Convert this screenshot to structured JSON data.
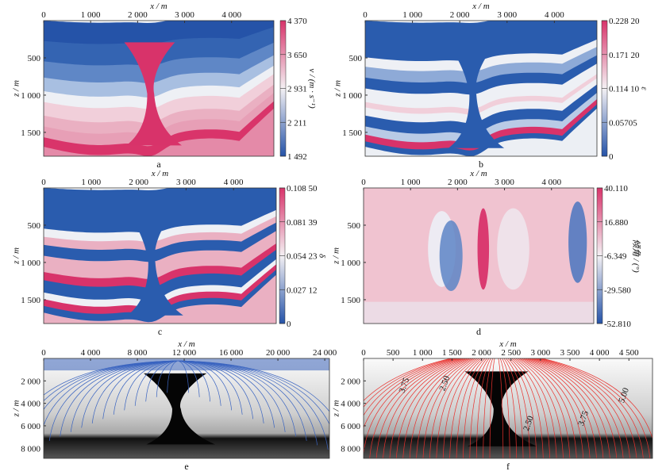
{
  "chart_data": [
    {
      "panel": "a",
      "type": "heatmap",
      "xlabel": "x / m",
      "ylabel": "z / m",
      "xlim": [
        0,
        4900
      ],
      "ylim": [
        1820,
        0
      ],
      "xticks": [
        0,
        1000,
        2000,
        3000,
        4000
      ],
      "xtick_labels": [
        "0",
        "1 000",
        "2 000",
        "3 000",
        "4 000"
      ],
      "yticks": [
        500,
        1000,
        1500
      ],
      "ytick_labels": [
        "500",
        "1 000",
        "1 500"
      ],
      "colorbar": {
        "label": "v / (m · s⁻¹)",
        "ticks": [
          "1 492",
          "2 211",
          "2 931",
          "3 650",
          "4 370"
        ],
        "range": [
          1492,
          4370
        ],
        "colors": [
          "#2553a8",
          "#f4f1f4",
          "#d8336a"
        ]
      }
    },
    {
      "panel": "b",
      "type": "heatmap",
      "xlabel": "x / m",
      "ylabel": "z / m",
      "xlim": [
        0,
        4900
      ],
      "ylim": [
        1820,
        0
      ],
      "xticks": [
        0,
        1000,
        2000,
        3000,
        4000
      ],
      "xtick_labels": [
        "0",
        "1 000",
        "2 000",
        "3 000",
        "4 000"
      ],
      "yticks": [
        500,
        1000,
        1500
      ],
      "ytick_labels": [
        "500",
        "1 000",
        "1 500"
      ],
      "colorbar": {
        "label": "ε",
        "ticks": [
          "0",
          "0.05705",
          "0.114 10",
          "0.171 20",
          "0.228 20"
        ],
        "range": [
          0,
          0.2282
        ],
        "colors": [
          "#2553a8",
          "#f4f1f4",
          "#d8336a"
        ]
      }
    },
    {
      "panel": "c",
      "type": "heatmap",
      "xlabel": "x / m",
      "ylabel": "z / m",
      "xlim": [
        0,
        4900
      ],
      "ylim": [
        1820,
        0
      ],
      "xticks": [
        0,
        1000,
        2000,
        3000,
        4000
      ],
      "xtick_labels": [
        "0",
        "1 000",
        "2 000",
        "3 000",
        "4 000"
      ],
      "yticks": [
        500,
        1000,
        1500
      ],
      "ytick_labels": [
        "500",
        "1 000",
        "1 500"
      ],
      "colorbar": {
        "label": "δ",
        "ticks": [
          "0",
          "0.027 12",
          "0.054 23",
          "0.081 39",
          "0.108 50"
        ],
        "range": [
          0,
          0.1085
        ],
        "colors": [
          "#2553a8",
          "#f4f1f4",
          "#d8336a"
        ]
      }
    },
    {
      "panel": "d",
      "type": "heatmap",
      "xlabel": "x / m",
      "ylabel": "z / m",
      "xlim": [
        0,
        4900
      ],
      "ylim": [
        1820,
        0
      ],
      "xticks": [
        0,
        1000,
        2000,
        3000,
        4000
      ],
      "xtick_labels": [
        "0",
        "1 000",
        "2 000",
        "3 000",
        "4 000"
      ],
      "yticks": [
        500,
        1000,
        1500
      ],
      "ytick_labels": [
        "500",
        "1 000",
        "1 500"
      ],
      "colorbar": {
        "label": "倾角 / (°)",
        "ticks": [
          "-52.810",
          "-29.580",
          "-6.349",
          "16.880",
          "40.110"
        ],
        "range": [
          -52.81,
          40.11
        ],
        "colors": [
          "#2553a8",
          "#f4f1f4",
          "#d8336a"
        ]
      }
    },
    {
      "panel": "e",
      "type": "heatmap",
      "xlabel": "x / m",
      "ylabel": "z / m",
      "xlim": [
        0,
        24400
      ],
      "ylim": [
        8900,
        0
      ],
      "xticks": [
        0,
        4000,
        8000,
        12000,
        16000,
        20000,
        24000
      ],
      "xtick_labels": [
        "0",
        "4 000",
        "8 000",
        "12 000",
        "16 000",
        "20 000",
        "24 000"
      ],
      "yticks": [
        2000,
        4000,
        6000,
        8000
      ],
      "ytick_labels": [
        "2 000",
        "4 000",
        "6 000",
        "8 000"
      ],
      "overlay": {
        "kind": "ray paths",
        "color": "#3a64c0"
      }
    },
    {
      "panel": "f",
      "type": "heatmap",
      "xlabel": "x / m",
      "ylabel": "z / m",
      "xlim": [
        0,
        4900
      ],
      "ylim": [
        8900,
        0
      ],
      "xticks": [
        0,
        500,
        1000,
        1500,
        2000,
        2500,
        3000,
        3500,
        4000,
        4500
      ],
      "xtick_labels": [
        "0",
        "500",
        "1 000",
        "1 500",
        "2 000",
        "2 500",
        "3 000",
        "3 500",
        "4 000",
        "4 500"
      ],
      "yticks": [
        2000,
        4000,
        6000,
        8000
      ],
      "ytick_labels": [
        "2 000",
        "4 000",
        "6 000",
        "8 000"
      ],
      "overlay": {
        "kind": "traveltime contours",
        "color": "#e8302c",
        "contour_labels": [
          "3.75",
          "2.50",
          "5.00",
          "2.50",
          "3.75"
        ]
      }
    }
  ]
}
